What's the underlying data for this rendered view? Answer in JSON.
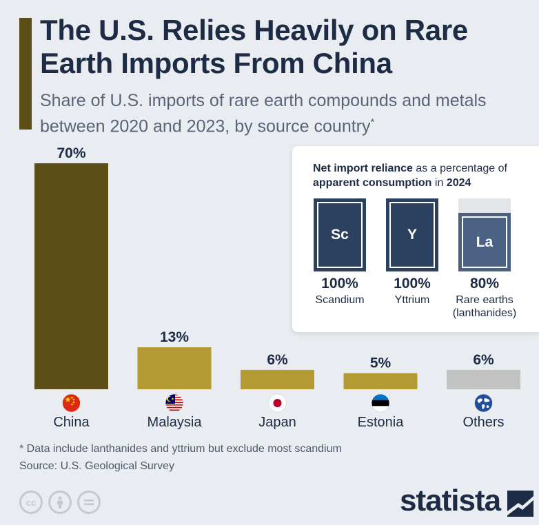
{
  "header": {
    "title": "The U.S. Relies Heavily on Rare Earth Imports From China",
    "subtitle": "Share of U.S. imports of rare earth compounds and metals between 2020 and 2023, by source country",
    "subtitle_mark": "*"
  },
  "chart_data": {
    "type": "bar",
    "categories": [
      "China",
      "Malaysia",
      "Japan",
      "Estonia",
      "Others"
    ],
    "values": [
      70,
      13,
      6,
      5,
      6
    ],
    "value_labels": [
      "70%",
      "13%",
      "6%",
      "5%",
      "6%"
    ],
    "colors": [
      "#5d4e18",
      "#b39a33",
      "#b39a33",
      "#b39a33",
      "#c2c2c2"
    ],
    "icons": [
      "china-flag-icon",
      "malaysia-flag-icon",
      "japan-flag-icon",
      "estonia-flag-icon",
      "globe-icon"
    ],
    "ylim": [
      0,
      70
    ],
    "grid": false,
    "legend": "none"
  },
  "inset": {
    "heading_bold_1": "Net import reliance",
    "heading_text_1": " as a percentage of ",
    "heading_bold_2": "apparent consumption",
    "heading_text_2": " in ",
    "heading_bold_3": "2024",
    "elements": [
      {
        "symbol": "Sc",
        "percent_label": "100%",
        "percent": 100,
        "name": "Scandium"
      },
      {
        "symbol": "Y",
        "percent_label": "100%",
        "percent": 100,
        "name": "Yttrium"
      },
      {
        "symbol": "La",
        "percent_label": "80%",
        "percent": 80,
        "name": "Rare earths (lanthanides)"
      }
    ]
  },
  "footer": {
    "footnote": "* Data include lanthanides and yttrium but exclude most scandium",
    "source": "Source: U.S. Geological Survey",
    "brand": "statista",
    "license_icons": [
      "creative-commons-icon",
      "attribution-icon",
      "no-derivatives-icon"
    ]
  }
}
